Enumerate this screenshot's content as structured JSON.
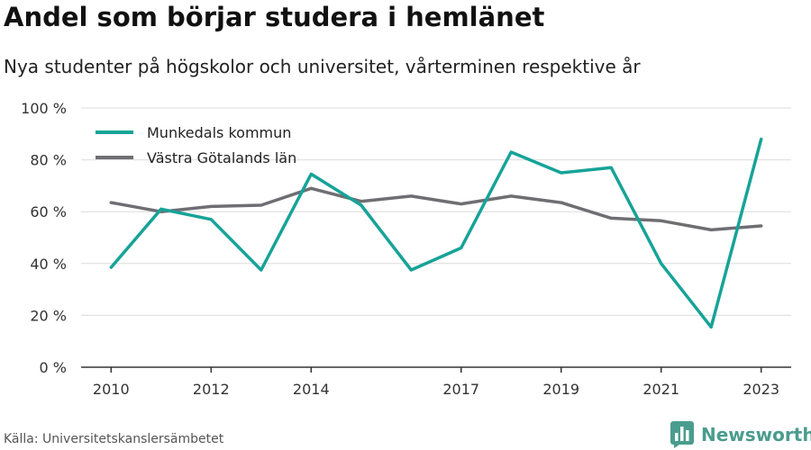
{
  "header": {
    "title": "Andel som börjar studera i hemlänet",
    "subtitle": "Nya studenter på högskolor och universitet, vårterminen respektive år"
  },
  "footer": {
    "source": "Källa: Universitetskanslersämbetet",
    "brand_name": "Newsworthy",
    "brand_icon": "bar-chart-logo-icon",
    "brand_color": "#4a9d8e"
  },
  "chart_data": {
    "type": "line",
    "x": [
      2010,
      2011,
      2012,
      2013,
      2014,
      2015,
      2016,
      2017,
      2018,
      2019,
      2020,
      2021,
      2022,
      2023
    ],
    "x_ticks": [
      {
        "value": 2010,
        "label": "2010"
      },
      {
        "value": 2012,
        "label": "2012"
      },
      {
        "value": 2014,
        "label": "2014"
      },
      {
        "value": 2017,
        "label": "2017"
      },
      {
        "value": 2019,
        "label": "2019"
      },
      {
        "value": 2021,
        "label": "2021"
      },
      {
        "value": 2023,
        "label": "2023"
      }
    ],
    "y_ticks": [
      {
        "value": 0,
        "label": "0 %"
      },
      {
        "value": 20,
        "label": "20 %"
      },
      {
        "value": 40,
        "label": "40 %"
      },
      {
        "value": 60,
        "label": "60 %"
      },
      {
        "value": 80,
        "label": "80 %"
      },
      {
        "value": 100,
        "label": "100 %"
      }
    ],
    "xlim": [
      2009.4,
      2023.6
    ],
    "ylim": [
      0,
      100
    ],
    "grid": true,
    "legend_position": "top-left",
    "xlabel": "",
    "ylabel": "",
    "series": [
      {
        "name": "Munkedals kommun",
        "color": "#17a398",
        "values": [
          38.5,
          61,
          57,
          37.5,
          74.5,
          62.5,
          37.5,
          46,
          83,
          75,
          77,
          40,
          15.5,
          88
        ]
      },
      {
        "name": "Västra Götalands län",
        "color": "#6e6e73",
        "values": [
          63.5,
          60,
          62,
          62.5,
          69,
          64,
          66,
          63,
          66,
          63.5,
          57.5,
          56.5,
          53,
          54.5
        ]
      }
    ]
  }
}
